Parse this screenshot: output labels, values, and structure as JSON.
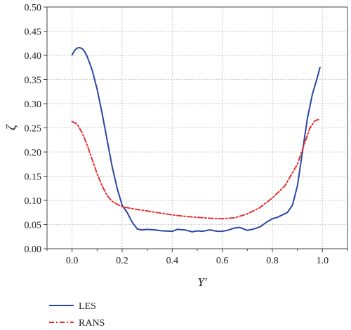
{
  "chart_data": {
    "type": "line",
    "xlabel": "Y'",
    "ylabel": "ζ",
    "xlim": [
      -0.1,
      1.1
    ],
    "ylim": [
      0.0,
      0.5
    ],
    "x_ticks": [
      "0.0",
      "0.2",
      "0.4",
      "0.6",
      "0.8",
      "1.0"
    ],
    "y_ticks": [
      "0.00",
      "0.05",
      "0.10",
      "0.15",
      "0.20",
      "0.25",
      "0.30",
      "0.35",
      "0.40",
      "0.45",
      "0.50"
    ],
    "grid": true,
    "legend_position": "bottom-left",
    "series": [
      {
        "name": "LES",
        "color": "#2b46a6",
        "style": "solid",
        "x": [
          0.0,
          0.01,
          0.02,
          0.03,
          0.04,
          0.05,
          0.06,
          0.08,
          0.1,
          0.12,
          0.14,
          0.16,
          0.18,
          0.2,
          0.22,
          0.24,
          0.26,
          0.28,
          0.3,
          0.33,
          0.36,
          0.4,
          0.42,
          0.45,
          0.48,
          0.5,
          0.52,
          0.55,
          0.58,
          0.6,
          0.62,
          0.65,
          0.67,
          0.7,
          0.72,
          0.75,
          0.78,
          0.8,
          0.82,
          0.84,
          0.86,
          0.88,
          0.9,
          0.92,
          0.94,
          0.96,
          0.98,
          0.99
        ],
        "y": [
          0.401,
          0.41,
          0.415,
          0.416,
          0.414,
          0.408,
          0.398,
          0.37,
          0.33,
          0.28,
          0.225,
          0.17,
          0.125,
          0.09,
          0.075,
          0.055,
          0.041,
          0.039,
          0.04,
          0.039,
          0.037,
          0.036,
          0.04,
          0.039,
          0.035,
          0.037,
          0.036,
          0.039,
          0.036,
          0.036,
          0.038,
          0.043,
          0.044,
          0.038,
          0.04,
          0.045,
          0.056,
          0.062,
          0.065,
          0.07,
          0.075,
          0.09,
          0.13,
          0.2,
          0.27,
          0.32,
          0.355,
          0.375
        ]
      },
      {
        "name": "RANS",
        "color": "#e8302f",
        "style": "dash-dot",
        "x": [
          0.0,
          0.02,
          0.04,
          0.06,
          0.08,
          0.1,
          0.12,
          0.14,
          0.16,
          0.18,
          0.2,
          0.25,
          0.3,
          0.35,
          0.4,
          0.45,
          0.5,
          0.55,
          0.6,
          0.65,
          0.7,
          0.75,
          0.8,
          0.85,
          0.9,
          0.93,
          0.95,
          0.97,
          0.99
        ],
        "y": [
          0.263,
          0.258,
          0.24,
          0.215,
          0.185,
          0.155,
          0.13,
          0.11,
          0.098,
          0.092,
          0.087,
          0.082,
          0.078,
          0.074,
          0.07,
          0.067,
          0.065,
          0.063,
          0.062,
          0.064,
          0.072,
          0.085,
          0.105,
          0.13,
          0.175,
          0.22,
          0.25,
          0.265,
          0.268
        ]
      }
    ]
  }
}
